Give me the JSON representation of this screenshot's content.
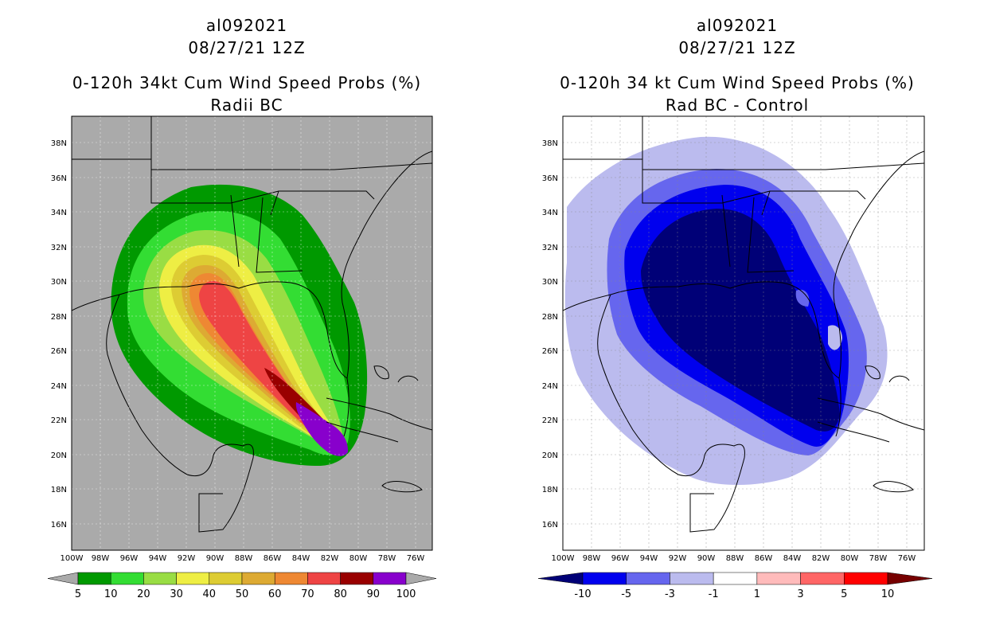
{
  "left": {
    "title_line1": "al092021",
    "title_line2": "08/27/21 12Z",
    "title_line3": "0-120h 34kt Cum Wind Speed Probs (%)",
    "title_line4": "Radii BC",
    "colorbar": {
      "labels": [
        "5",
        "10",
        "20",
        "30",
        "40",
        "50",
        "60",
        "70",
        "80",
        "90",
        "100"
      ],
      "colors": [
        "#009900",
        "#33dd33",
        "#99dd44",
        "#eeee44",
        "#ddcc33",
        "#ddaa33",
        "#ee8833",
        "#ee4444",
        "#990000",
        "#8800cc"
      ],
      "under_color": "#aaaaaa",
      "over_color": "#aaaaaa"
    }
  },
  "right": {
    "title_line1": "al092021",
    "title_line2": "08/27/21 12Z",
    "title_line3": "0-120h 34 kt Cum Wind Speed Probs (%)",
    "title_line4": "Rad BC - Control",
    "colorbar": {
      "labels": [
        "-10",
        "-5",
        "-3",
        "-1",
        "1",
        "3",
        "5",
        "10"
      ],
      "colors": [
        "#0000ee",
        "#6666ee",
        "#bbbbee",
        "#ffffff",
        "#ffbbbb",
        "#ff6666",
        "#ff0000"
      ],
      "under_color": "#000077",
      "over_color": "#770000"
    }
  },
  "axes": {
    "lat_labels": [
      "38N",
      "36N",
      "34N",
      "32N",
      "30N",
      "28N",
      "26N",
      "24N",
      "22N",
      "20N",
      "18N",
      "16N"
    ],
    "lon_labels": [
      "100W",
      "98W",
      "96W",
      "94W",
      "92W",
      "90W",
      "88W",
      "86W",
      "84W",
      "82W",
      "80W",
      "78W",
      "76W"
    ]
  }
}
